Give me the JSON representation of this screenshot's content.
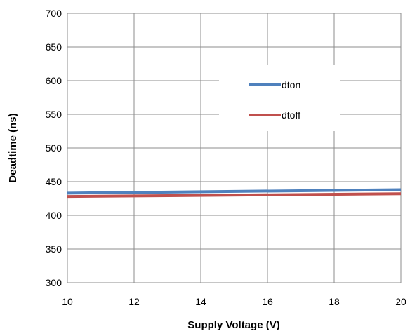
{
  "chart_data": {
    "type": "line",
    "title": "",
    "xlabel": "Supply Voltage (V)",
    "ylabel": "Deadtime (ns)",
    "xlim": [
      10,
      20
    ],
    "ylim": [
      300,
      700
    ],
    "xticks": [
      "10",
      "12",
      "14",
      "16",
      "18",
      "20"
    ],
    "yticks": [
      "300",
      "350",
      "400",
      "450",
      "500",
      "550",
      "600",
      "650",
      "700"
    ],
    "grid": true,
    "legend_position": "upper-right",
    "series": [
      {
        "name": "dton",
        "color": "#4F81BD",
        "x": [
          10,
          20
        ],
        "y": [
          433,
          438
        ]
      },
      {
        "name": "dtoff",
        "color": "#C0504D",
        "x": [
          10,
          20
        ],
        "y": [
          428,
          432
        ]
      }
    ]
  }
}
